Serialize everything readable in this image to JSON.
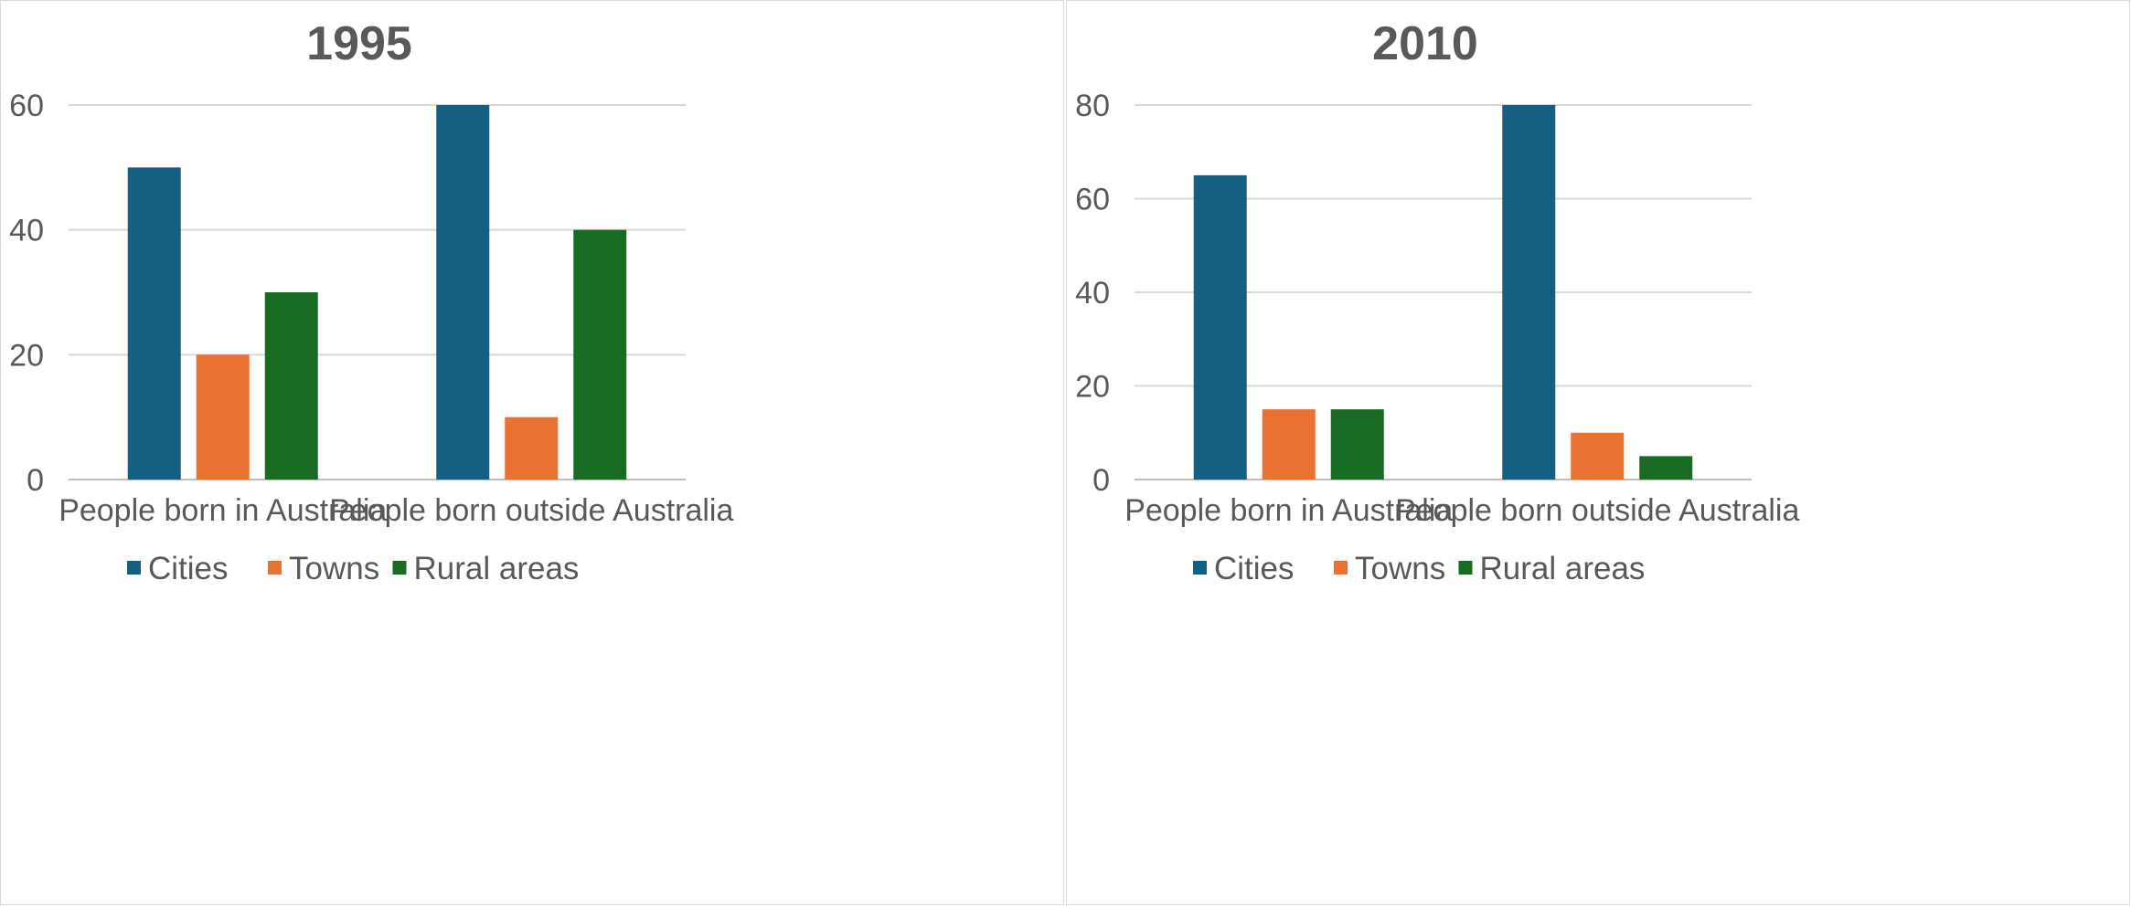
{
  "chart_data": [
    {
      "type": "bar",
      "title": "1995",
      "categories": [
        "People born in Australia",
        "People born outside Australia"
      ],
      "series": [
        {
          "name": "Cities",
          "color": "#156082",
          "values": [
            50,
            60
          ]
        },
        {
          "name": "Towns",
          "color": "#E97132",
          "values": [
            20,
            10
          ]
        },
        {
          "name": "Rural areas",
          "color": "#196B24",
          "values": [
            30,
            40
          ]
        }
      ],
      "yticks": [
        0,
        20,
        40,
        60
      ],
      "ylim": [
        0,
        60
      ],
      "grid": true,
      "legend": "bottom"
    },
    {
      "type": "bar",
      "title": "2010",
      "categories": [
        "People born in Australia",
        "People born outside Australia"
      ],
      "series": [
        {
          "name": "Cities",
          "color": "#156082",
          "values": [
            65,
            80
          ]
        },
        {
          "name": "Towns",
          "color": "#E97132",
          "values": [
            15,
            10
          ]
        },
        {
          "name": "Rural areas",
          "color": "#196B24",
          "values": [
            15,
            5
          ]
        }
      ],
      "yticks": [
        0,
        20,
        40,
        60,
        80
      ],
      "ylim": [
        0,
        80
      ],
      "grid": true,
      "legend": "bottom"
    }
  ]
}
